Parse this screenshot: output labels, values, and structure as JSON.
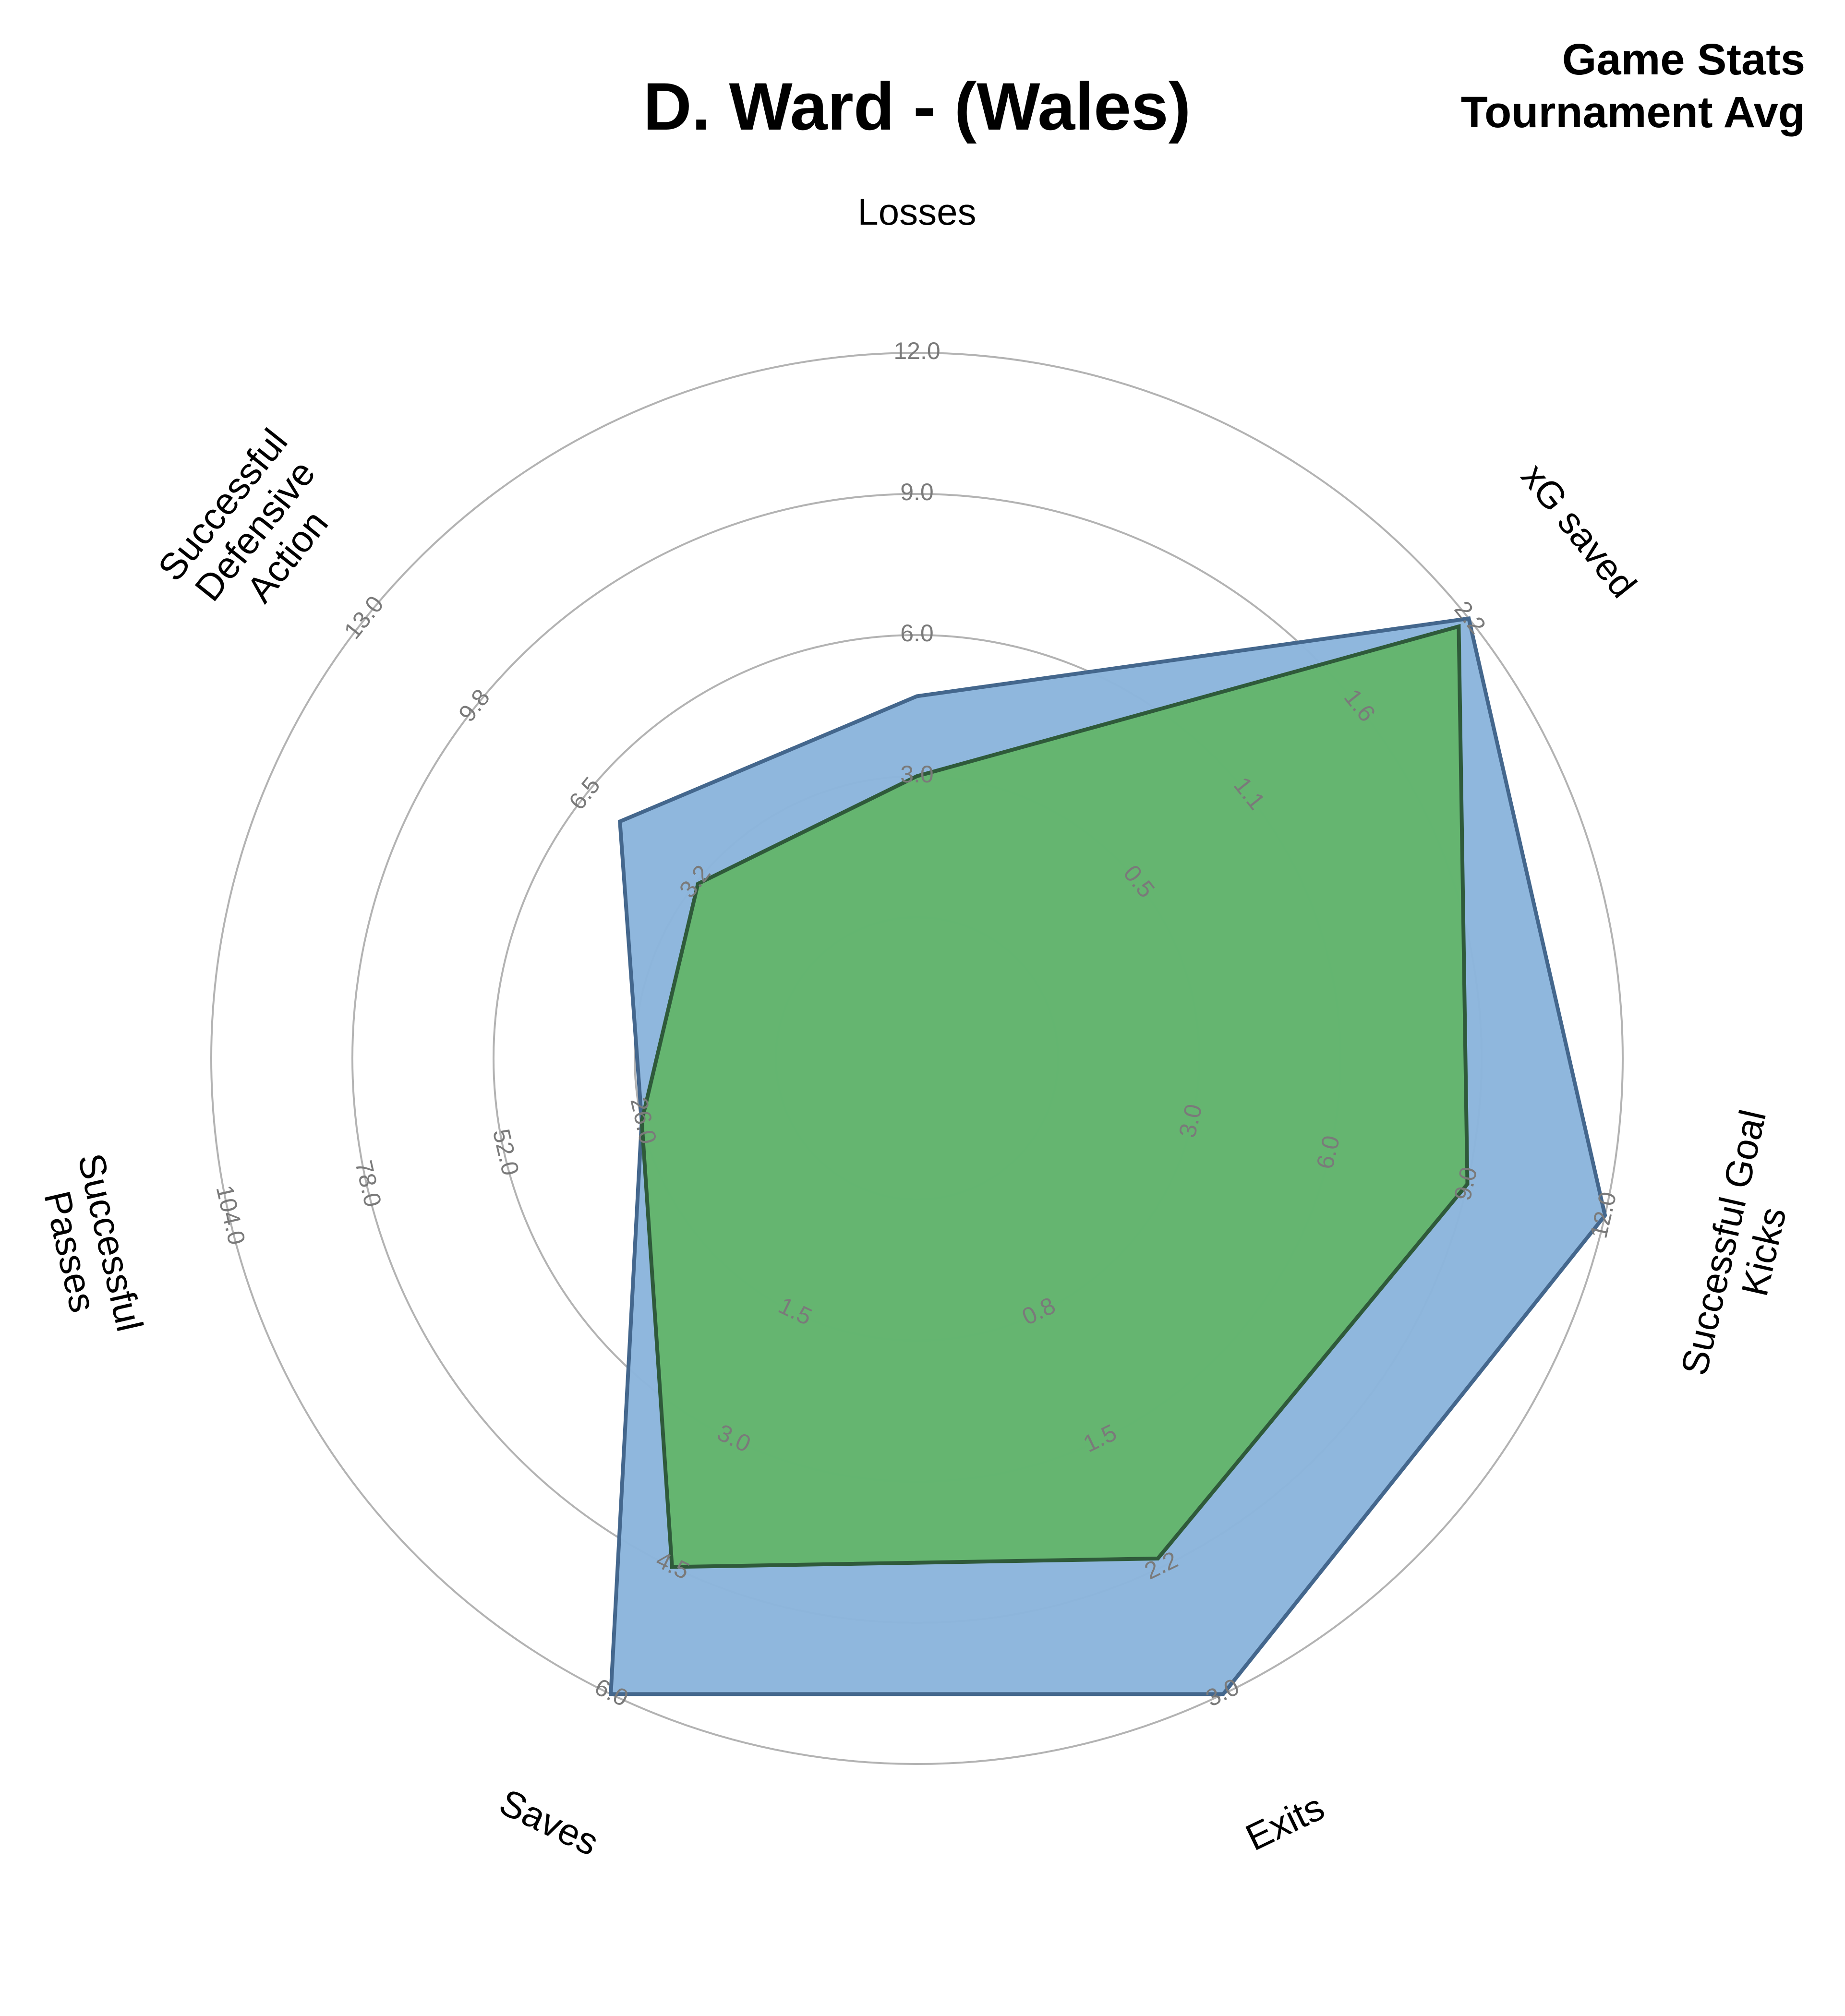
{
  "chart_data": {
    "type": "radar",
    "title": "D. Ward - (Wales)",
    "legend": [
      {
        "label": "Game Stats",
        "color": "#3b7dc4"
      },
      {
        "label": "Tournament Avg",
        "color": "#3cb514"
      }
    ],
    "legend_position": "top-right",
    "grid": true,
    "axes": [
      {
        "label": "Losses",
        "max": 12.0,
        "ticks": [
          "3.0",
          "6.0",
          "9.0",
          "12.0"
        ]
      },
      {
        "label": "xG saved",
        "max": 2.2,
        "ticks": [
          "0.5",
          "1.1",
          "1.6",
          "2.2"
        ]
      },
      {
        "label": "Successful Goal Kicks",
        "max": 12.0,
        "ticks": [
          "3.0",
          "6.0",
          "9.0",
          "12.0"
        ]
      },
      {
        "label": "Exits",
        "max": 3.0,
        "ticks": [
          "0.8",
          "1.5",
          "2.2",
          "3.0"
        ]
      },
      {
        "label": "Saves",
        "max": 6.0,
        "ticks": [
          "1.5",
          "3.0",
          "4.5",
          "6.0"
        ]
      },
      {
        "label": "Successful Passes",
        "max": 104.0,
        "ticks": [
          "26.0",
          "52.0",
          "78.0",
          "104.0"
        ]
      },
      {
        "label": "Successful Defensive Action",
        "max": 13.0,
        "ticks": [
          "3.2",
          "6.5",
          "9.8",
          "13.0"
        ]
      }
    ],
    "series": [
      {
        "name": "Game Stats",
        "color": "#3b7dc4",
        "fill": "#8bb5dc",
        "stroke": "#44678d",
        "values": [
          4.7,
          2.2,
          12.0,
          3.0,
          6.0,
          26.0,
          5.5
        ]
      },
      {
        "name": "Tournament Avg",
        "color": "#3cb514",
        "fill": "#63b56c",
        "stroke": "#2f5a3a",
        "values": [
          3.0,
          2.15,
          9.0,
          2.2,
          4.5,
          26.0,
          3.2
        ]
      }
    ]
  }
}
